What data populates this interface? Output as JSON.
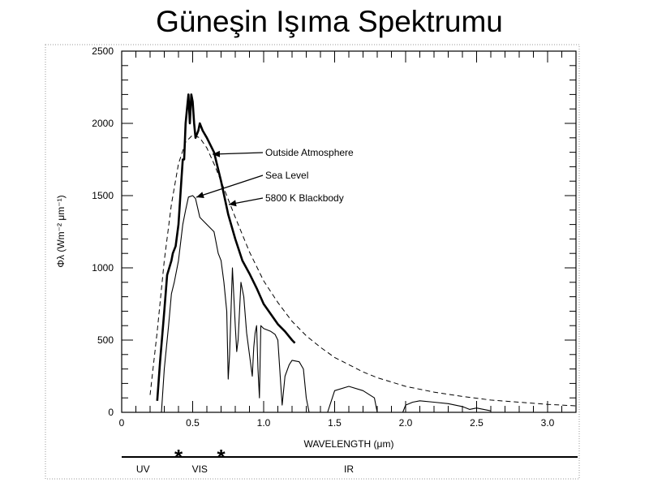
{
  "slide": {
    "title": "Güneşin Işıma Spektrumu"
  },
  "chart_data": {
    "type": "line",
    "xlabel": "WAVELENGTH (μm)",
    "ylabel": "Φλ (Wm⁻² μm⁻¹)",
    "xlim": [
      0,
      3.2
    ],
    "ylim": [
      0,
      2500
    ],
    "x_ticks": [
      "0",
      "0.5",
      "1.0",
      "1.5",
      "2.0",
      "2.5",
      "3.0"
    ],
    "y_ticks": [
      "0",
      "500",
      "1000",
      "1500",
      "2000",
      "2500"
    ],
    "annotations": [
      "Outside Atmosphere",
      "Sea Level",
      "5800 K Blackbody"
    ],
    "bands": [
      {
        "label": "UV",
        "x": 0.15
      },
      {
        "label": "VIS",
        "x": 0.55
      },
      {
        "label": "IR",
        "x": 1.6
      }
    ],
    "band_boundaries": [
      0.4,
      0.7
    ],
    "series": [
      {
        "name": "Outside Atmosphere",
        "style": "thick",
        "x": [
          0.25,
          0.27,
          0.3,
          0.32,
          0.35,
          0.36,
          0.38,
          0.4,
          0.42,
          0.43,
          0.44,
          0.45,
          0.46,
          0.47,
          0.48,
          0.49,
          0.5,
          0.51,
          0.52,
          0.54,
          0.55,
          0.57,
          0.6,
          0.65,
          0.7,
          0.75,
          0.8,
          0.85,
          0.9,
          0.95,
          1.0,
          1.05,
          1.1,
          1.15,
          1.2,
          1.22
        ],
        "y": [
          80,
          350,
          700,
          950,
          1050,
          1100,
          1150,
          1300,
          1600,
          1750,
          1750,
          2000,
          2100,
          2200,
          2000,
          2200,
          2150,
          2000,
          1900,
          1950,
          2000,
          1950,
          1900,
          1800,
          1600,
          1370,
          1200,
          1050,
          960,
          860,
          750,
          680,
          610,
          560,
          500,
          480
        ]
      },
      {
        "name": "Sea Level",
        "style": "thin",
        "x": [
          0.28,
          0.3,
          0.33,
          0.35,
          0.37,
          0.4,
          0.43,
          0.45,
          0.47,
          0.5,
          0.52,
          0.55,
          0.6,
          0.65,
          0.68,
          0.7,
          0.72,
          0.74,
          0.75,
          0.76,
          0.78,
          0.8,
          0.81,
          0.82,
          0.84,
          0.86,
          0.88,
          0.9,
          0.92,
          0.93,
          0.94,
          0.95,
          0.96,
          0.97,
          0.98,
          1.0,
          1.05,
          1.08,
          1.1,
          1.12,
          1.13,
          1.15,
          1.18,
          1.2,
          1.25,
          1.28,
          1.3,
          1.32,
          1.35,
          1.4,
          1.45,
          1.5,
          1.6,
          1.7,
          1.78,
          1.8,
          1.85,
          1.9,
          1.95,
          1.98,
          2.0,
          2.05,
          2.1,
          2.2,
          2.3,
          2.4,
          2.45,
          2.5,
          2.6
        ],
        "y": [
          0,
          300,
          600,
          820,
          900,
          1050,
          1300,
          1400,
          1490,
          1500,
          1480,
          1350,
          1300,
          1250,
          1100,
          1050,
          900,
          700,
          230,
          400,
          1000,
          600,
          420,
          500,
          900,
          800,
          550,
          400,
          250,
          450,
          550,
          600,
          300,
          100,
          600,
          580,
          560,
          540,
          500,
          200,
          50,
          250,
          330,
          360,
          350,
          300,
          100,
          0,
          0,
          0,
          0,
          150,
          180,
          150,
          100,
          0,
          0,
          0,
          0,
          0,
          50,
          70,
          80,
          70,
          60,
          40,
          20,
          30,
          10
        ]
      },
      {
        "name": "5800 K Blackbody",
        "style": "dashed",
        "x": [
          0.2,
          0.25,
          0.3,
          0.35,
          0.4,
          0.45,
          0.5,
          0.55,
          0.6,
          0.65,
          0.7,
          0.8,
          0.9,
          1.0,
          1.1,
          1.2,
          1.3,
          1.4,
          1.5,
          1.6,
          1.7,
          1.8,
          2.0,
          2.2,
          2.4,
          2.6,
          2.8,
          3.0,
          3.2
        ],
        "y": [
          120,
          560,
          1050,
          1440,
          1720,
          1870,
          1920,
          1900,
          1830,
          1720,
          1600,
          1350,
          1110,
          910,
          760,
          630,
          530,
          450,
          380,
          330,
          280,
          240,
          180,
          140,
          110,
          85,
          70,
          55,
          45
        ]
      }
    ]
  }
}
